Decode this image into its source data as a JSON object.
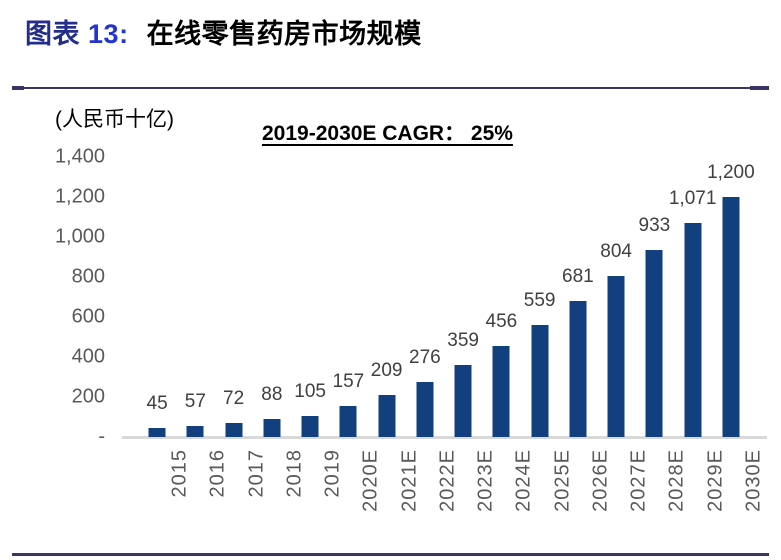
{
  "header": {
    "label": "图表",
    "number": "13",
    "separator": ":",
    "title": "在线零售药房市场规模"
  },
  "chart_data": {
    "type": "bar",
    "title": "在线零售药房市场规模",
    "unit_label": "(人民币十亿)",
    "annotation": "2019-2030E CAGR：  25%",
    "categories": [
      "2015",
      "2016",
      "2017",
      "2018",
      "2019",
      "2020E",
      "2021E",
      "2022E",
      "2023E",
      "2024E",
      "2025E",
      "2026E",
      "2027E",
      "2028E",
      "2029E",
      "2030E"
    ],
    "values": [
      45,
      57,
      72,
      88,
      105,
      157,
      209,
      276,
      359,
      456,
      559,
      681,
      804,
      933,
      1071,
      1200
    ],
    "value_labels": [
      "45",
      "57",
      "72",
      "88",
      "105",
      "157",
      "209",
      "276",
      "359",
      "456",
      "559",
      "681",
      "804",
      "933",
      "1,071",
      "1,200"
    ],
    "xlabel": "",
    "ylabel": "(人民币十亿)",
    "ylim": [
      0,
      1400
    ],
    "y_ticks": [
      "1,400",
      "1,200",
      "1,000",
      "800",
      "600",
      "400",
      "200",
      "-"
    ],
    "grid": false,
    "legend": false,
    "bar_color": "#12407e",
    "axis_line_color": "#d9d9d9",
    "frame_line_color": "#3a3564"
  }
}
